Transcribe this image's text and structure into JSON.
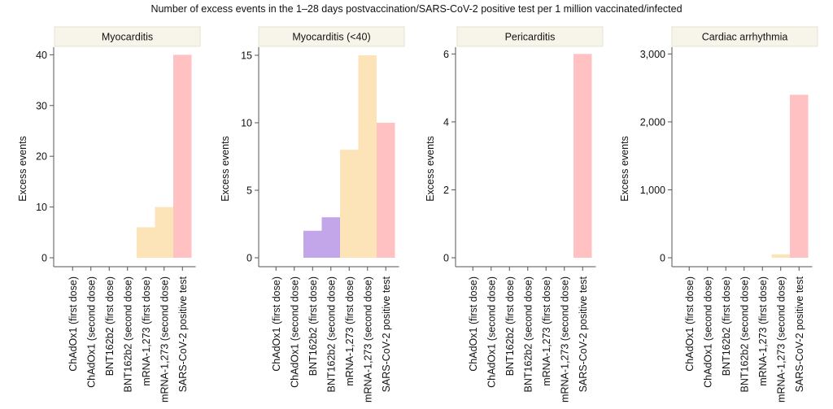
{
  "figure_title": "Number of excess events in the 1–28 days postvaccination/SARS-CoV-2 positive test per 1 million vaccinated/infected",
  "colors": {
    "ChAdOx1": "#a8d8e8",
    "BNT162b2": "#c3a6ea",
    "mRNA-1,273": "#fde3b8",
    "SARS-CoV-2": "#ffc1c1",
    "strip": "#f7f5ea",
    "axis": "#555555"
  },
  "chart_data": [
    {
      "type": "bar",
      "title": "Myocarditis",
      "ylabel": "Excess events",
      "categories": [
        "ChAdOx1 (first dose)",
        "ChAdOx1 (second dose)",
        "BNT162b2 (first dose)",
        "BNT162b2 (second dose)",
        "mRNA-1,273 (first dose)",
        "mRNA-1,273 (second dose)",
        "SARS-CoV-2 positive test"
      ],
      "values": [
        0,
        0,
        0,
        0,
        6,
        10,
        40
      ],
      "ylim": [
        0,
        41.5
      ],
      "yticks": [
        0,
        10,
        20,
        30,
        40
      ],
      "ytick_labels": [
        "0",
        "10",
        "20",
        "30",
        "40"
      ]
    },
    {
      "type": "bar",
      "title": "Myocarditis (<40)",
      "ylabel": "Excess events",
      "categories": [
        "ChAdOx1 (first dose)",
        "ChAdOx1 (second dose)",
        "BNT162b2 (first dose)",
        "BNT162b2 (second dose)",
        "mRNA-1,273 (first dose)",
        "mRNA-1,273 (second dose)",
        "SARS-CoV-2 positive test"
      ],
      "values": [
        0,
        0,
        2,
        3,
        8,
        15,
        10
      ],
      "ylim": [
        0,
        15.6
      ],
      "yticks": [
        0,
        5,
        10,
        15
      ],
      "ytick_labels": [
        "0",
        "5",
        "10",
        "15"
      ]
    },
    {
      "type": "bar",
      "title": "Pericarditis",
      "ylabel": "Excess events",
      "categories": [
        "ChAdOx1 (first dose)",
        "ChAdOx1 (second dose)",
        "BNT162b2 (first dose)",
        "BNT162b2 (second dose)",
        "mRNA-1,273 (first dose)",
        "mRNA-1,273 (second dose)",
        "SARS-CoV-2 positive test"
      ],
      "values": [
        0,
        0,
        0,
        0,
        0,
        0,
        6
      ],
      "ylim": [
        0,
        6.2
      ],
      "yticks": [
        0,
        2,
        4,
        6
      ],
      "ytick_labels": [
        "0",
        "2",
        "4",
        "6"
      ]
    },
    {
      "type": "bar",
      "title": "Cardiac arrhythmia",
      "ylabel": "Excess events",
      "categories": [
        "ChAdOx1 (first dose)",
        "ChAdOx1 (second dose)",
        "BNT162b2 (first dose)",
        "BNT162b2 (second dose)",
        "mRNA-1,273 (first dose)",
        "mRNA-1,273 (second dose)",
        "SARS-CoV-2 positive test"
      ],
      "values": [
        0,
        0,
        0,
        0,
        0,
        50,
        2400
      ],
      "ylim": [
        0,
        3100
      ],
      "yticks": [
        0,
        1000,
        2000,
        3000
      ],
      "ytick_labels": [
        "0",
        "1,000",
        "2,000",
        "3,000"
      ]
    }
  ]
}
